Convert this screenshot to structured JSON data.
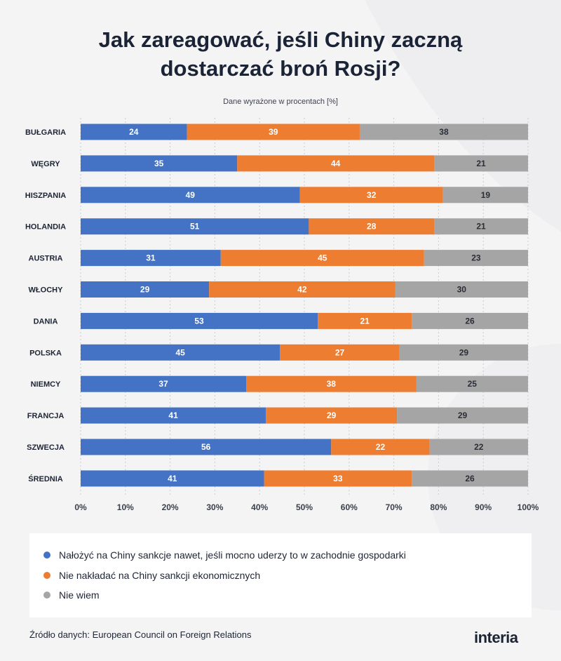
{
  "header": {
    "title_line1": "Jak zareagować, jeśli Chiny zaczną",
    "title_line2": "dostarczać broń Rosji?",
    "subtitle": "Dane wyrażone w procentach [%]"
  },
  "chart_data": {
    "type": "bar",
    "orientation": "horizontal",
    "stacked": true,
    "categories": [
      "BUŁGARIA",
      "WĘGRY",
      "HISZPANIA",
      "HOLANDIA",
      "AUSTRIA",
      "WŁOCHY",
      "DANIA",
      "POLSKA",
      "NIEMCY",
      "FRANCJA",
      "SZWECJA",
      "ŚREDNIA"
    ],
    "series": [
      {
        "name": "Nałożyć na Chiny sankcje nawet, jeśli mocno uderzy to w zachodnie gospodarki",
        "color": "#4472c4",
        "values": [
          24,
          35,
          49,
          51,
          31,
          29,
          53,
          45,
          37,
          41,
          56,
          41
        ]
      },
      {
        "name": "Nie nakładać na Chiny sankcji ekonomicznych",
        "color": "#ed7d31",
        "values": [
          39,
          44,
          32,
          28,
          45,
          42,
          21,
          27,
          38,
          29,
          22,
          33
        ]
      },
      {
        "name": "Nie wiem",
        "color": "#a5a5a5",
        "values": [
          38,
          21,
          19,
          21,
          23,
          30,
          26,
          29,
          25,
          29,
          22,
          26
        ]
      }
    ],
    "xlim": [
      0,
      100
    ],
    "xticks": [
      "0%",
      "10%",
      "20%",
      "30%",
      "40%",
      "50%",
      "60%",
      "70%",
      "80%",
      "90%",
      "100%"
    ],
    "grid": true,
    "legend_position": "bottom"
  },
  "footer": {
    "source": "Źródło danych: European Council on Foreign Relations",
    "logo": "interia"
  }
}
